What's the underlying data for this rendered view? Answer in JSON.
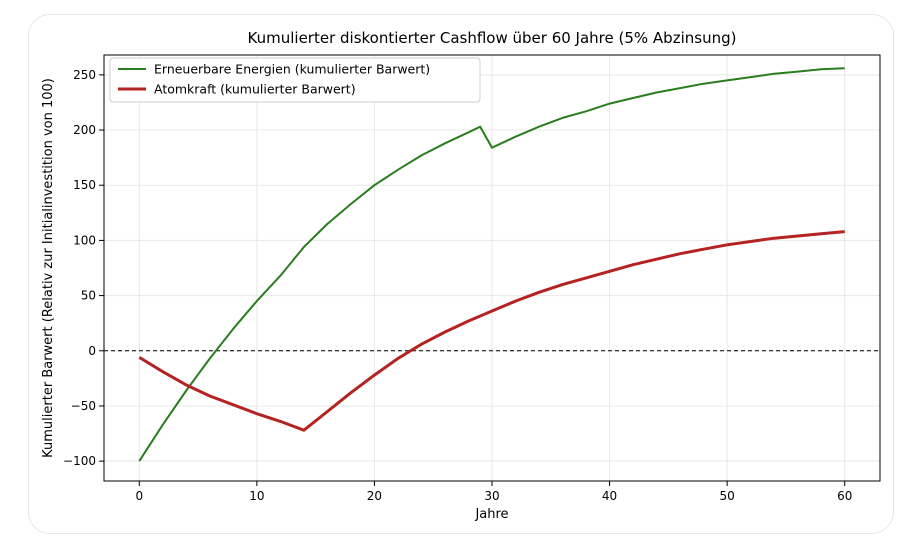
{
  "chart_data": {
    "type": "line",
    "title": "Kumulierter diskontierter Cashflow über 60 Jahre (5% Abzinsung)",
    "xlabel": "Jahre",
    "ylabel": "Kumulierter Barwert (Relativ zur Initialinvestition von 100)",
    "xlim": [
      -3,
      63
    ],
    "ylim": [
      -118,
      268
    ],
    "xticks": [
      0,
      10,
      20,
      30,
      40,
      50,
      60
    ],
    "yticks": [
      -100,
      -50,
      0,
      50,
      100,
      150,
      200,
      250
    ],
    "grid": true,
    "legend_position": "top-left",
    "reference_line": {
      "y": 0,
      "style": "dashed",
      "color": "#000000"
    },
    "series": [
      {
        "name": "Erneuerbare Energien (kumulierter Barwert)",
        "color": "#2a7d1f",
        "x": [
          0,
          2,
          4,
          6,
          8,
          10,
          12,
          14,
          16,
          18,
          20,
          22,
          24,
          26,
          28,
          29,
          30,
          32,
          34,
          36,
          38,
          40,
          42,
          44,
          46,
          48,
          50,
          52,
          54,
          56,
          58,
          60
        ],
        "y": [
          -100,
          -67,
          -36,
          -7,
          20,
          45,
          68,
          94,
          115,
          133,
          150,
          164,
          177,
          188,
          198,
          203,
          184,
          194,
          203,
          211,
          217,
          224,
          229,
          234,
          238,
          242,
          245,
          248,
          251,
          253,
          255,
          256
        ]
      },
      {
        "name": "Atomkraft (kumulierter Barwert)",
        "color": "#b52222",
        "x": [
          0,
          2,
          4,
          6,
          8,
          10,
          12,
          14,
          16,
          18,
          20,
          22,
          24,
          26,
          28,
          30,
          32,
          34,
          36,
          38,
          40,
          42,
          44,
          46,
          48,
          50,
          52,
          54,
          56,
          58,
          60
        ],
        "y": [
          -6,
          -19,
          -31,
          -41,
          -49,
          -57,
          -64,
          -72,
          -55,
          -38,
          -22,
          -7,
          6,
          17,
          27,
          36,
          45,
          53,
          60,
          66,
          72,
          78,
          83,
          88,
          92,
          96,
          99,
          102,
          104,
          106,
          108
        ]
      }
    ]
  }
}
